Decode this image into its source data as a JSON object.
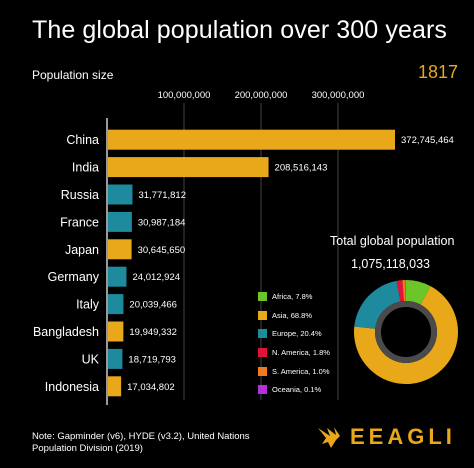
{
  "header": {
    "title": "The global population over 300 years",
    "subtitle": "Population size",
    "year": "1817"
  },
  "chart_data": [
    {
      "type": "bar",
      "orientation": "horizontal",
      "categories": [
        "China",
        "India",
        "Russia",
        "France",
        "Japan",
        "Germany",
        "Italy",
        "Bangladesh",
        "UK",
        "Indonesia"
      ],
      "values": [
        372745464,
        208516143,
        31771812,
        30987184,
        30645650,
        24012924,
        20039466,
        19949332,
        18719793,
        17034802
      ],
      "value_labels": [
        "372,745,464",
        "208,516,143",
        "31,771,812",
        "30,987,184",
        "30,645,650",
        "24,012,924",
        "20,039,466",
        "19,949,332",
        "18,719,793",
        "17,034,802"
      ],
      "regions": [
        "Asia",
        "Asia",
        "Europe",
        "Europe",
        "Asia",
        "Europe",
        "Europe",
        "Asia",
        "Europe",
        "Asia"
      ],
      "xticks": [
        100000000,
        200000000,
        300000000
      ],
      "xtick_labels": [
        "100,000,000",
        "200,000,000",
        "300,000,000"
      ],
      "xlim": [
        0,
        380000000
      ],
      "grid": true
    },
    {
      "type": "pie",
      "style": "donut",
      "title": "Total global population",
      "total": "1,075,118,033",
      "labels": [
        "Africa",
        "Asia",
        "Europe",
        "N. America",
        "S. America",
        "Oceania"
      ],
      "values": [
        7.8,
        68.8,
        20.4,
        1.8,
        1.0,
        0.1
      ],
      "legend_labels": [
        "Africa, 7.8%",
        "Asia, 68.8%",
        "Europe, 20.4%",
        "N. America, 1.8%",
        "S. America, 1.0%",
        "Oceania, 0.1%"
      ]
    }
  ],
  "colors": {
    "Africa": "#6cc627",
    "Asia": "#e8a81a",
    "Europe": "#1e8a9e",
    "N. America": "#e0143a",
    "S. America": "#f07a22",
    "Oceania": "#b530d8",
    "gridline": "#444444"
  },
  "footer": {
    "note_line1": "Note: Gapminder (v6), HYDE (v3.2), United Nations",
    "note_line2": "Population Division (2019)",
    "brand": "EEAGLI"
  }
}
